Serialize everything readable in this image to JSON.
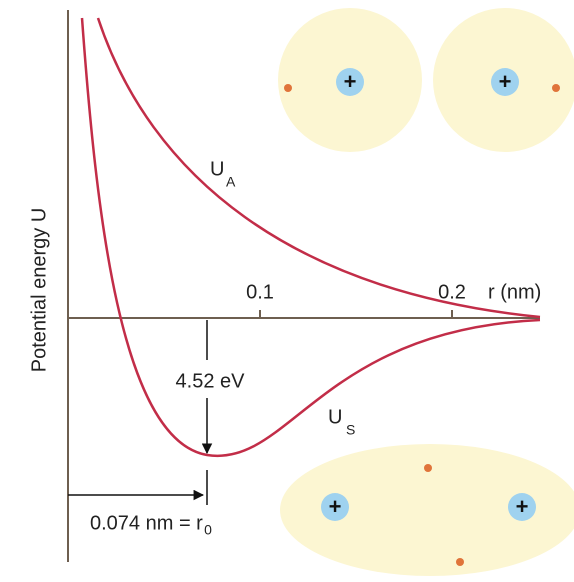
{
  "axis": {
    "y_label": "Potential energy U",
    "x_label": "r (nm)",
    "ticks": [
      "0.1",
      "0.2"
    ]
  },
  "curves": {
    "antisymmetric": {
      "label": "U",
      "subscript": "A"
    },
    "symmetric": {
      "label": "U",
      "subscript": "S"
    }
  },
  "annotations": {
    "depth": "4.52 eV",
    "separation": "0.074 nm = r",
    "separation_subscript": "0"
  },
  "symbols": {
    "proton": "+"
  }
}
